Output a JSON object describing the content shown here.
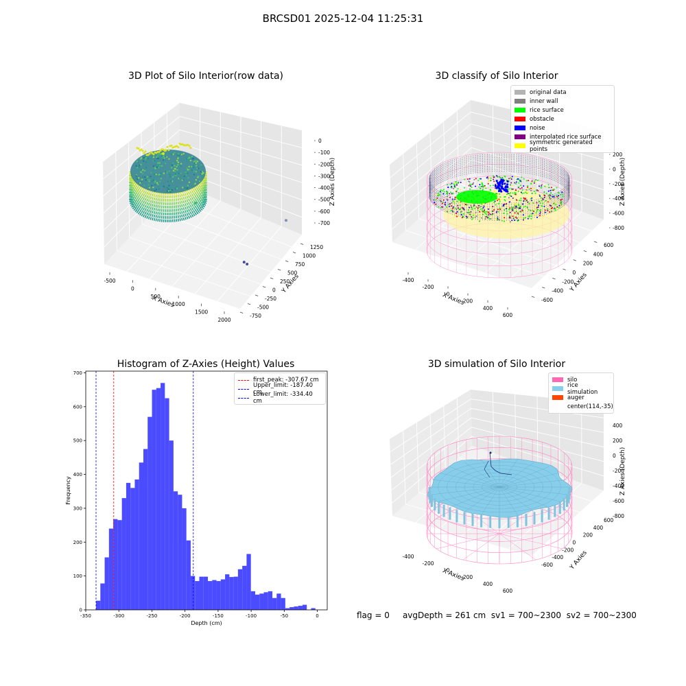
{
  "figure": {
    "suptitle": "BRCSD01 2025-12-04 11:25:31",
    "footer": {
      "flag": "flag = 0",
      "avg_depth": "avgDepth = 261 cm",
      "sv1": "sv1 = 700~2300",
      "sv2": "sv2 = 700~2300"
    }
  },
  "chart_data": [
    {
      "type": "scatter",
      "title": "3D Plot of Silo Interior(row data)",
      "xlabel": "X Axies",
      "ylabel": "Y Axies",
      "zlabel": "Z Axies (Depth)",
      "x_ticks": [
        -500,
        0,
        500,
        1000,
        1500,
        2000
      ],
      "y_ticks": [
        -750,
        -500,
        -250,
        0,
        250,
        500,
        750,
        1000,
        1250
      ],
      "z_ticks": [
        0,
        -100,
        -200,
        -300,
        -400,
        -500,
        -600,
        -700
      ],
      "outliers": [
        {
          "x": 1900,
          "y": -500,
          "z": -480,
          "color": "#4b4b8f"
        },
        {
          "x": 1900,
          "y": -420,
          "z": -520,
          "color": "#4b4b8f"
        },
        {
          "x": 1700,
          "y": 900,
          "z": -620,
          "color": "#7f8fb0"
        }
      ]
    },
    {
      "type": "scatter",
      "title": "3D classify of Silo Interior",
      "xlabel": "X Axies",
      "ylabel": "Y Axies",
      "zlabel": "Z Axies (Depth)",
      "x_ticks": [
        -400,
        -200,
        0,
        200,
        400,
        600
      ],
      "y_ticks": [
        -600,
        -400,
        -200,
        0,
        200,
        400,
        600
      ],
      "z_ticks": [
        200,
        0,
        -200,
        -400,
        -600,
        -800
      ],
      "legend": [
        {
          "label": "original data",
          "color": "#b3b3b3"
        },
        {
          "label": "inner wall",
          "color": "#808080"
        },
        {
          "label": "rice surface",
          "color": "#00ff00"
        },
        {
          "label": "obstacle",
          "color": "#ff0000"
        },
        {
          "label": "noise",
          "color": "#0000ff"
        },
        {
          "label": "interpolated rice surface",
          "color": "#800080"
        },
        {
          "label": "symmetric generated points",
          "color": "#ffff00"
        }
      ]
    },
    {
      "type": "bar",
      "title": "Histogram of Z-Axies (Height) Values",
      "xlabel": "Depth (cm)",
      "ylabel": "Frequency",
      "xlim": [
        -350,
        15
      ],
      "ylim": [
        0,
        705
      ],
      "x_ticks": [
        -350,
        -300,
        -250,
        -200,
        -150,
        -100,
        -50,
        0
      ],
      "y_ticks": [
        0,
        100,
        200,
        300,
        400,
        500,
        600,
        700
      ],
      "bin_start": -334.4,
      "bin_width": 6.5,
      "values": [
        27,
        78,
        155,
        240,
        268,
        265,
        330,
        375,
        360,
        385,
        435,
        475,
        570,
        650,
        655,
        670,
        625,
        500,
        350,
        340,
        300,
        205,
        100,
        85,
        98,
        98,
        85,
        88,
        85,
        90,
        105,
        97,
        98,
        120,
        130,
        165,
        55,
        45,
        48,
        52,
        55,
        35,
        48,
        35,
        5,
        8,
        10,
        12,
        15,
        0,
        5
      ],
      "lines": [
        {
          "label": "first_peak: -307.67 cm",
          "value": -307.67,
          "color": "#ff0000"
        },
        {
          "label": "Upper_limit: -187.40 cm",
          "value": -187.4,
          "color": "#0000ff"
        },
        {
          "label": "Lower_limit: -334.40 cm",
          "value": -334.4,
          "color": "#0000ff"
        }
      ]
    },
    {
      "type": "area",
      "title": "3D simulation of Silo Interior",
      "xlabel": "X Axies",
      "ylabel": "Y Axies",
      "zlabel": "Z Axies (Depth)",
      "x_ticks": [
        -400,
        -200,
        0,
        200,
        400,
        600
      ],
      "y_ticks": [
        -600,
        -400,
        -200,
        0,
        200,
        400,
        600
      ],
      "z_ticks": [
        400,
        200,
        0,
        -200,
        -400,
        -600,
        -800
      ],
      "legend": [
        {
          "label": "silo",
          "color": "#ff69b4"
        },
        {
          "label": "rice simulation",
          "color": "#87ceeb"
        },
        {
          "label": "auger",
          "color": "#ff4500"
        },
        {
          "label": "center(114,-35)",
          "color": ""
        }
      ]
    }
  ]
}
